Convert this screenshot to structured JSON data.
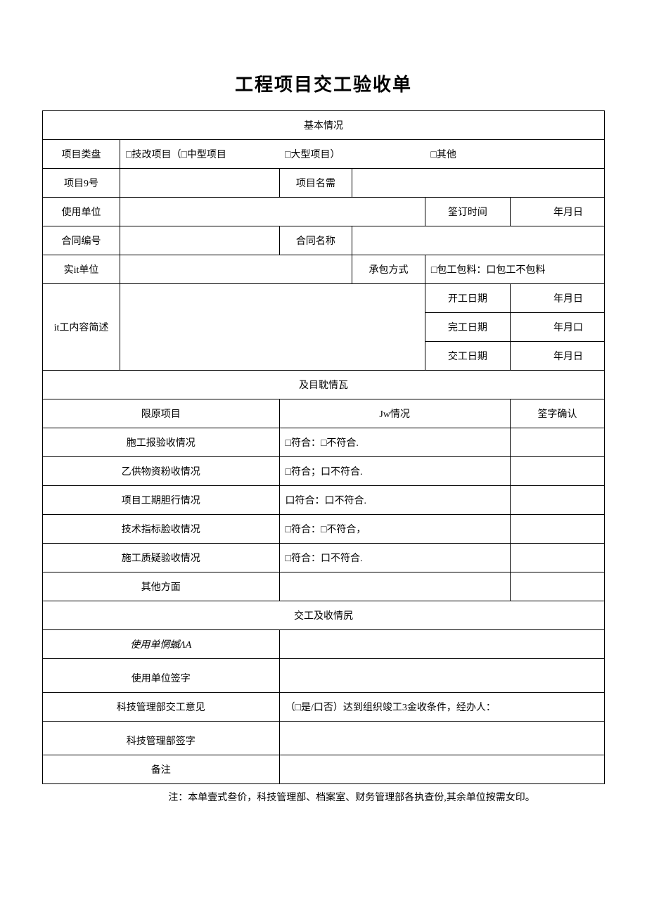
{
  "title": "工程项目交工验收单",
  "section1": {
    "header": "基本情况",
    "row1": {
      "label": "项目类盘",
      "option1": "□技改项目（□中型项目",
      "option2": "□大型项目）",
      "option3": "□其他"
    },
    "row2": {
      "label": "项目9号",
      "label2": "项目名需"
    },
    "row3": {
      "label": "使用单位",
      "label2": "筌订时间",
      "value2": "年月日"
    },
    "row4": {
      "label": "合同编号",
      "label2": "合同名称"
    },
    "row5": {
      "label": "实it单位",
      "label2": "承包方式",
      "value2": "□包工包料：口包工不包料"
    },
    "row6": {
      "label": "it工内容简述",
      "item1_label": "开工日期",
      "item1_value": "年月日",
      "item2_label": "完工日期",
      "item2_value": "年月口",
      "item3_label": "交工日期",
      "item3_value": "年月日"
    }
  },
  "section2": {
    "header": "及目耽情瓦",
    "col1": "限原项目",
    "col2": "Jw情况",
    "col3": "筌字确认",
    "rows": [
      {
        "label": "胞工报验收情况",
        "status": "□符合：□不符合."
      },
      {
        "label": "乙供物资粉收情况",
        "status": "□符合；口不符合."
      },
      {
        "label": "项目工期胆行情况",
        "status": "口符合：口不符合."
      },
      {
        "label": "技术指标脸收情况",
        "status": "□符合：□不符合，"
      },
      {
        "label": "施工质疑验收情况",
        "status": "□符合：口不符合."
      },
      {
        "label": "其他方面",
        "status": ""
      }
    ]
  },
  "section3": {
    "header": "交工及收情尻",
    "row1_label": "使用单惘蝛ΛA",
    "row2_label": "使用单位签字",
    "row3_label": "科技管理部交工意见",
    "row3_content": "（□是/口否）达到组织竣工3金收条件，经办人：",
    "row4_label": "科技管理部签字",
    "row5_label": "备注"
  },
  "footer": "注：本单壹式叁价，科技管理部、档案室、财务管理部各执查份,其余单位按需女印。"
}
